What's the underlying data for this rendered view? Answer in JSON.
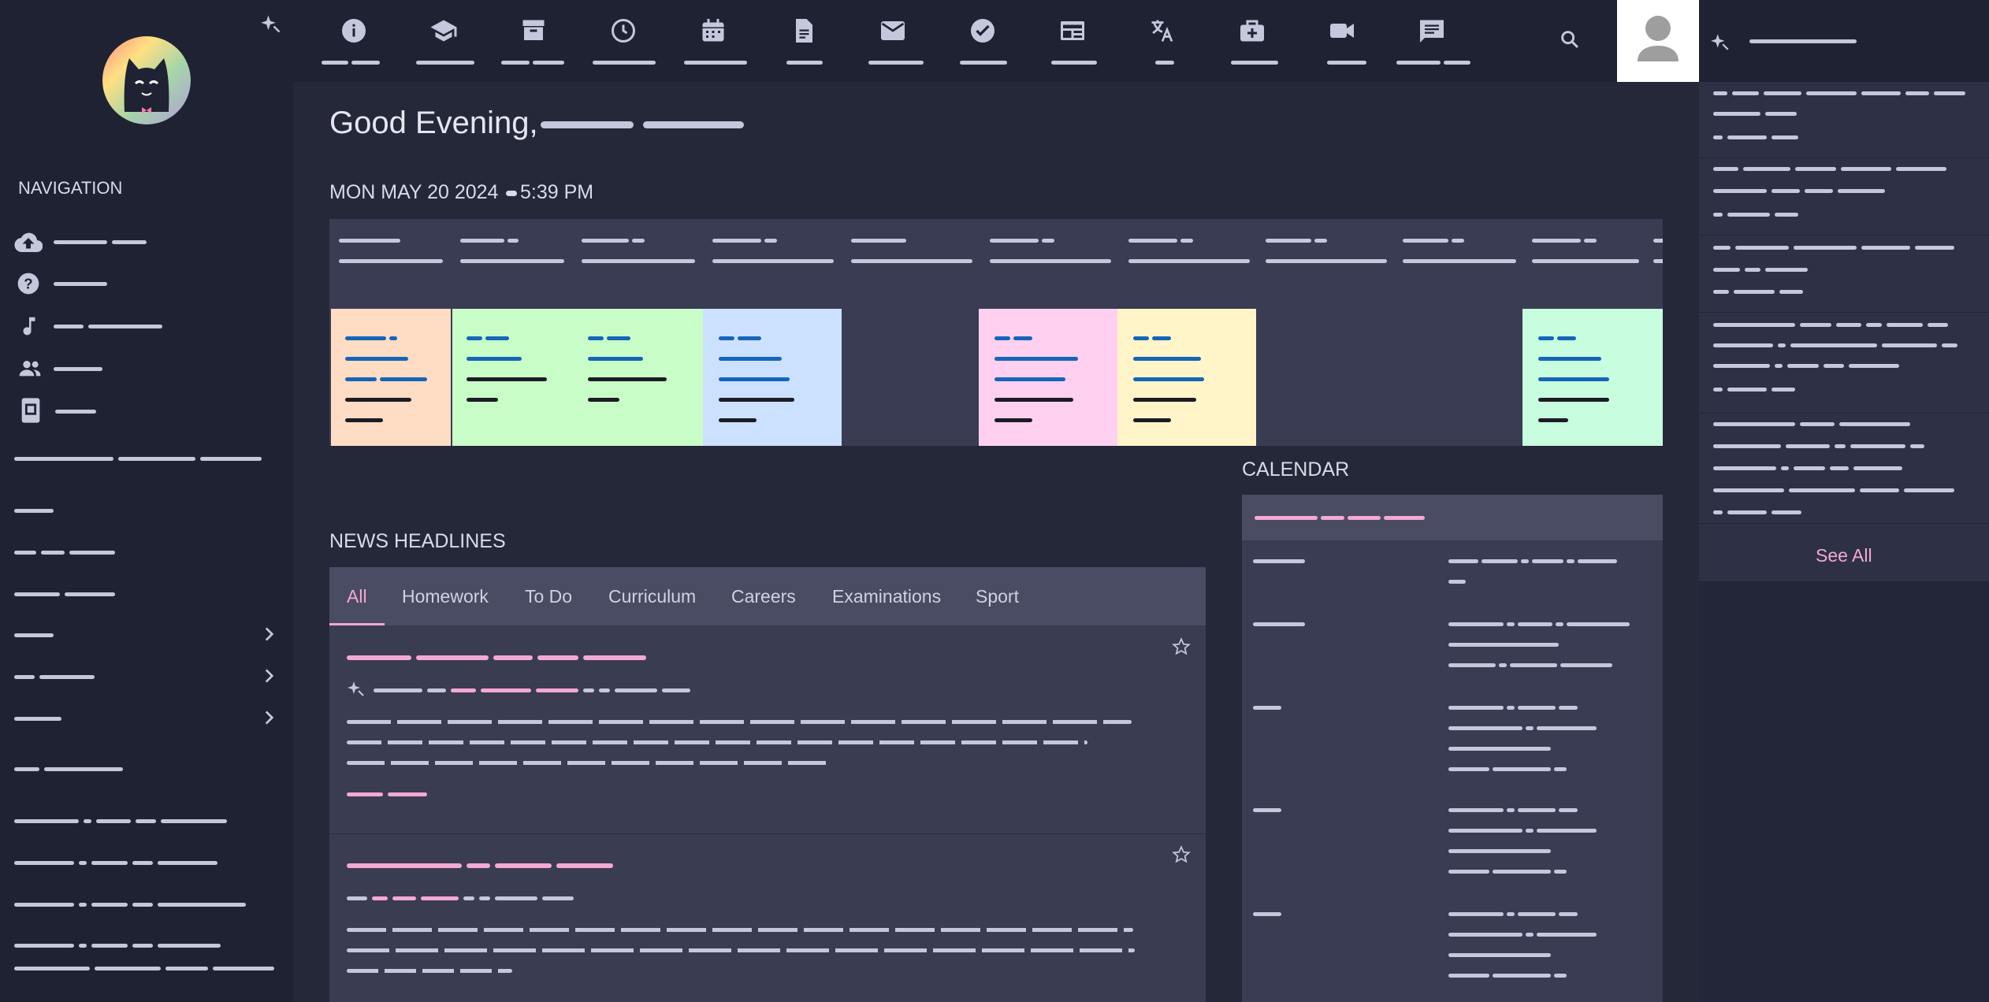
{
  "greeting": "Good Evening,",
  "datetime": {
    "date": "MON MAY 20 2024",
    "time": "5:39 PM"
  },
  "sidebar": {
    "heading": "NAVIGATION"
  },
  "sections": {
    "calendar": "CALENDAR",
    "news": "NEWS HEADLINES"
  },
  "news_tabs": [
    "All",
    "Homework",
    "To Do",
    "Curriculum",
    "Careers",
    "Examinations",
    "Sport"
  ],
  "news_active_tab": "All",
  "right_panel": {
    "see_all": "See All"
  },
  "colors": {
    "accent_pink": "#f4a8d4",
    "link_blue": "#1566b8",
    "period_peach": "#ffdcc4",
    "period_green": "#c9fdc8",
    "period_blue": "#cce0ff",
    "period_pink": "#ffd0f0",
    "period_yellow": "#fff5c8",
    "period_mint": "#c8fde0"
  },
  "icons": {
    "topbar": [
      "info-icon",
      "school-icon",
      "archive-icon",
      "clock-icon",
      "calendar-icon",
      "document-icon",
      "mail-icon",
      "check-circle-icon",
      "news-icon",
      "translate-icon",
      "medical-bag-icon",
      "video-camera-icon",
      "message-icon"
    ],
    "sidebar": [
      "cloud-upload-icon",
      "help-icon",
      "music-note-icon",
      "people-icon",
      "badge-icon"
    ]
  }
}
